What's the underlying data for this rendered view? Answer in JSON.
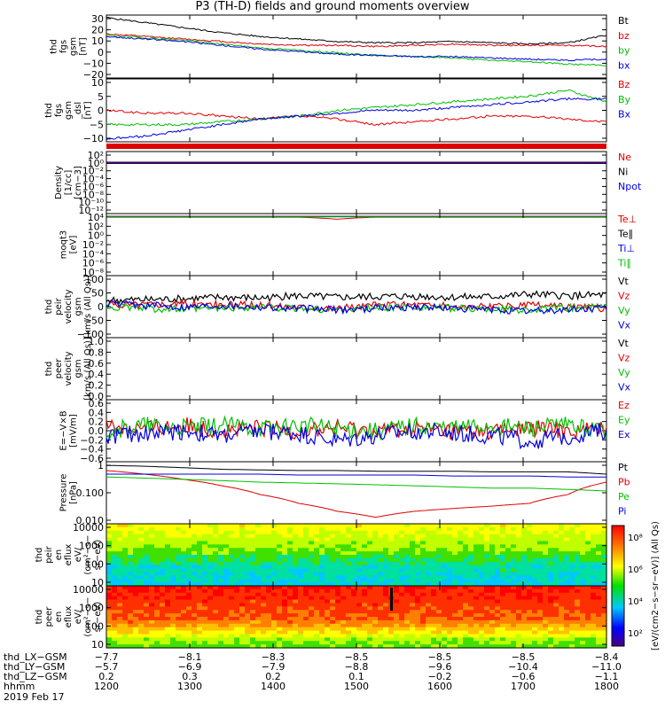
{
  "title": "P3 (TH-D) fields and ground moments overview",
  "panels": [
    {
      "id": "p1",
      "label": [
        "thd",
        "fgs",
        "gsm",
        "[nT]"
      ],
      "ticks": [
        "30",
        "20",
        "10",
        "0",
        "−10",
        "−20"
      ],
      "legend": [
        {
          "t": "Bt",
          "c": "#000000"
        },
        {
          "t": "bz",
          "c": "#e00000"
        },
        {
          "t": "by",
          "c": "#00c000"
        },
        {
          "t": "bx",
          "c": "#0000e0"
        }
      ]
    },
    {
      "id": "p2",
      "label": [
        "thd",
        "fgs",
        "gsm",
        "_dsl",
        "[nT]"
      ],
      "ticks": [
        "10",
        "5",
        "0",
        "−5",
        "−10"
      ],
      "legend": [
        {
          "t": "Bz",
          "c": "#e00000"
        },
        {
          "t": "By",
          "c": "#00c000"
        },
        {
          "t": "Bx",
          "c": "#0000e0"
        }
      ]
    },
    {
      "id": "p3",
      "label": [
        "Density",
        "[1/cc]",
        "[cm−3]"
      ],
      "ticks": [
        "10²",
        "10⁰",
        "10⁻²",
        "10⁻⁴",
        "10⁻⁶",
        "10⁻⁸",
        "10⁻¹⁰",
        "10⁻¹²"
      ],
      "legend": [
        {
          "t": "Ne",
          "c": "#e00000"
        },
        {
          "t": "Ni",
          "c": "#000000"
        },
        {
          "t": "Npot",
          "c": "#0000e0"
        }
      ]
    },
    {
      "id": "p4",
      "label": [
        "moqt3",
        "[eV]"
      ],
      "ticks": [
        "10⁴",
        "10²",
        "10⁰",
        "10⁻²",
        "10⁻⁴",
        "10⁻⁶",
        "10⁻⁸"
      ],
      "legend": [
        {
          "t": "Te⊥",
          "c": "#e00000"
        },
        {
          "t": "Te∥",
          "c": "#000000"
        },
        {
          "t": "Ti⊥",
          "c": "#0000e0"
        },
        {
          "t": "Ti∥",
          "c": "#00c000"
        }
      ]
    },
    {
      "id": "p5",
      "label": [
        "thd",
        "peir",
        "velocity",
        "gsm",
        "[km/s (All Qs)]"
      ],
      "ticks": [
        "100",
        "50",
        "0",
        "−50",
        "−100"
      ],
      "legend": [
        {
          "t": "Vt",
          "c": "#000000"
        },
        {
          "t": "Vz",
          "c": "#e00000"
        },
        {
          "t": "Vy",
          "c": "#00c000"
        },
        {
          "t": "Vx",
          "c": "#0000e0"
        }
      ]
    },
    {
      "id": "p6",
      "label": [
        "thd",
        "peer",
        "velocity",
        "gsm",
        "[km/s (All Qs)]"
      ],
      "ticks": [
        "1.0",
        "0.8",
        "0.6",
        "0.4",
        "0.2",
        "0.0"
      ],
      "legend": [
        {
          "t": "Vt",
          "c": "#000000"
        },
        {
          "t": "Vz",
          "c": "#e00000"
        },
        {
          "t": "Vy",
          "c": "#00c000"
        },
        {
          "t": "Vx",
          "c": "#0000e0"
        }
      ]
    },
    {
      "id": "p7",
      "label": [
        "E=−V×B",
        "[mV/m]"
      ],
      "ticks": [
        "0.6",
        "0.4",
        "0.2",
        "0.0",
        "−0.2",
        "−0.4",
        "−0.6"
      ],
      "legend": [
        {
          "t": "Ez",
          "c": "#e00000"
        },
        {
          "t": "Ey",
          "c": "#00c000"
        },
        {
          "t": "Ex",
          "c": "#0000e0"
        }
      ]
    },
    {
      "id": "p8",
      "label": [
        "Pressure",
        "[nPa]"
      ],
      "ticks": [
        "1",
        "0.100",
        "0.010"
      ],
      "legend": [
        {
          "t": "Pt",
          "c": "#000000"
        },
        {
          "t": "Pb",
          "c": "#e00000"
        },
        {
          "t": "Pe",
          "c": "#00c000"
        },
        {
          "t": "Pi",
          "c": "#0000e0"
        }
      ]
    },
    {
      "id": "p9",
      "label": [
        "thd",
        "peir",
        "en",
        "eflux",
        "eV/",
        "(cm²−s−",
        "sr−eV)"
      ],
      "ticks": [
        "10000",
        "1000",
        "100",
        "10"
      ],
      "legend": []
    },
    {
      "id": "p10",
      "label": [
        "thd",
        "peer",
        "en",
        "eflux",
        "eV/",
        "(cm²−s−",
        "sr−eV)"
      ],
      "ticks": [
        "10000",
        "1000",
        "100",
        "10"
      ],
      "legend": []
    }
  ],
  "colorbar": {
    "ticks": [
      "10⁸",
      "10⁶",
      "10⁴",
      "10²"
    ],
    "label": "[eV/(cm2−s−sr−eV)] (All Qs)"
  },
  "footer": {
    "rows": [
      {
        "name": "thd_LX−GSM",
        "vals": [
          "−7.7",
          "−8.1",
          "−8.3",
          "−8.5",
          "−8.5",
          "−8.5",
          "−8.4"
        ]
      },
      {
        "name": "thd_LY−GSM",
        "vals": [
          "−5.7",
          "−6.9",
          "−7.9",
          "−8.8",
          "−9.6",
          "−10.4",
          "−11.0"
        ]
      },
      {
        "name": "thd_LZ−GSM",
        "vals": [
          "0.2",
          "0.3",
          "0.2",
          "0.1",
          "−0.2",
          "−0.6",
          "−1.1"
        ]
      },
      {
        "name": "hhmm",
        "vals": [
          "1200",
          "1300",
          "1400",
          "1500",
          "1600",
          "1700",
          "1800"
        ]
      }
    ],
    "date": "2019 Feb 17"
  },
  "chart_data": {
    "type": "line",
    "title": "P3 (TH-D) fields and ground moments overview",
    "x_label": "hhmm",
    "x_ticks": [
      "1200",
      "1300",
      "1400",
      "1500",
      "1600",
      "1700",
      "1800"
    ],
    "x_range": [
      "1200",
      "1800"
    ],
    "panels": [
      {
        "name": "thd fgs gsm [nT]",
        "ylim": [
          -20,
          30
        ],
        "series": [
          {
            "name": "Bt",
            "color": "#000000",
            "values": [
              28,
              24,
              20,
              16,
              13,
              11,
              9,
              8,
              8,
              9,
              8,
              7,
              8,
              14
            ]
          },
          {
            "name": "bz",
            "color": "#e00000",
            "values": [
              15,
              13,
              11,
              9,
              7,
              6,
              6,
              5,
              6,
              7,
              6,
              6,
              6,
              5
            ]
          },
          {
            "name": "by",
            "color": "#00c000",
            "values": [
              14,
              12,
              10,
              7,
              4,
              2,
              0,
              -2,
              -3,
              -4,
              -6,
              -7,
              -9,
              -10
            ]
          },
          {
            "name": "bx",
            "color": "#0000e0",
            "values": [
              13,
              11,
              9,
              6,
              3,
              1,
              -1,
              -2,
              -3,
              -3,
              -4,
              -5,
              -6,
              -5
            ]
          }
        ]
      },
      {
        "name": "thd fgs gsm_dsl [nT]",
        "ylim": [
          -12,
          10
        ],
        "series": [
          {
            "name": "Bz",
            "color": "#e00000",
            "values": [
              -1,
              -2,
              -2,
              -3,
              -4,
              -3,
              -4,
              -6,
              -5,
              -4,
              -3,
              -3,
              -4,
              -5
            ]
          },
          {
            "name": "By",
            "color": "#00c000",
            "values": [
              -6,
              -6,
              -6,
              -5,
              -4,
              -3,
              -1,
              0,
              1,
              2,
              3,
              4,
              6,
              2
            ]
          },
          {
            "name": "Bx",
            "color": "#0000e0",
            "values": [
              -11,
              -10,
              -8,
              -6,
              -4,
              -3,
              -2,
              -1,
              -1,
              0,
              1,
              2,
              3,
              3
            ]
          }
        ]
      },
      {
        "name": "Density [1/cc]",
        "scale": "log",
        "ylim": [
          1e-12,
          100
        ],
        "series": [
          {
            "name": "Ne",
            "color": "#e00000",
            "values": [
              0.3,
              0.3,
              0.3,
              0.3,
              0.3,
              0.3,
              0.3,
              0.3,
              0.3,
              0.3,
              0.3,
              0.3,
              0.3,
              0.3
            ]
          },
          {
            "name": "Ni",
            "color": "#000000",
            "values": [
              0.4,
              0.4,
              0.4,
              0.4,
              0.4,
              0.4,
              0.4,
              0.4,
              0.4,
              0.4,
              0.4,
              0.4,
              0.4,
              0.4
            ]
          },
          {
            "name": "Npot",
            "color": "#0000e0",
            "values": [
              0.2,
              0.2,
              0.2,
              0.2,
              0.2,
              0.2,
              0.2,
              0.2,
              0.2,
              0.2,
              0.2,
              0.2,
              0.2,
              0.2
            ]
          }
        ]
      },
      {
        "name": "moqt3 [eV]",
        "scale": "log",
        "ylim": [
          1e-08,
          10000
        ],
        "series": [
          {
            "name": "Te⊥",
            "color": "#e00000",
            "values": [
              2000,
              2000,
              2000,
              2000,
              2000,
              2000,
              800,
              2000,
              2000,
              2000,
              2000,
              2000,
              2000,
              2000
            ]
          },
          {
            "name": "Te∥",
            "color": "#000000",
            "values": [
              3000,
              3000,
              3000,
              3000,
              3000,
              3000,
              3000,
              3000,
              3000,
              3000,
              3000,
              3000,
              3000,
              3000
            ]
          },
          {
            "name": "Ti⊥",
            "color": "#0000e0",
            "values": [
              2500,
              2500,
              2500,
              2500,
              2500,
              2500,
              2500,
              2500,
              2500,
              2500,
              2500,
              2500,
              2500,
              2500
            ]
          },
          {
            "name": "Ti∥",
            "color": "#00c000",
            "values": [
              2200,
              2200,
              2200,
              2200,
              2200,
              2200,
              2200,
              2200,
              2200,
              2200,
              2200,
              2200,
              2200,
              2200
            ]
          }
        ]
      },
      {
        "name": "thd peir velocity gsm [km/s]",
        "ylim": [
          -100,
          100
        ],
        "series": [
          {
            "name": "Vt",
            "color": "#000000",
            "values": [
              20,
              22,
              25,
              30,
              28,
              35,
              30,
              32,
              34,
              30,
              32,
              40,
              35,
              38
            ]
          },
          {
            "name": "Vz",
            "color": "#e00000",
            "values": [
              5,
              8,
              10,
              6,
              4,
              0,
              -5,
              5,
              8,
              0,
              -2,
              5,
              0,
              -5
            ]
          },
          {
            "name": "Vy",
            "color": "#00c000",
            "values": [
              0,
              -5,
              -10,
              -5,
              0,
              -8,
              -10,
              -5,
              0,
              -5,
              -8,
              -10,
              -5,
              0
            ]
          },
          {
            "name": "Vx",
            "color": "#0000e0",
            "values": [
              10,
              5,
              0,
              5,
              0,
              -5,
              -10,
              -5,
              0,
              -5,
              -10,
              -15,
              -10,
              -5
            ]
          }
        ]
      },
      {
        "name": "thd peer velocity gsm [km/s]",
        "ylim": [
          0,
          1
        ],
        "series": []
      },
      {
        "name": "E=−V×B [mV/m]",
        "ylim": [
          -0.6,
          0.6
        ],
        "series": [
          {
            "name": "Ez",
            "color": "#e00000",
            "values": [
              0.1,
              0.05,
              0.1,
              0.0,
              0.05,
              0.0,
              0.05,
              0.0,
              0.05,
              0.0,
              0.0,
              0.05,
              0.0,
              0.05
            ]
          },
          {
            "name": "Ey",
            "color": "#00c000",
            "values": [
              0.0,
              0.1,
              0.05,
              0.1,
              0.05,
              0.1,
              0.05,
              0.0,
              0.1,
              0.05,
              0.1,
              0.05,
              0.1,
              0.0
            ]
          },
          {
            "name": "Ex",
            "color": "#0000e0",
            "values": [
              -0.1,
              -0.05,
              0.0,
              -0.1,
              0.0,
              -0.05,
              -0.2,
              -0.1,
              0.0,
              -0.05,
              -0.1,
              -0.2,
              -0.1,
              0.0
            ]
          }
        ]
      },
      {
        "name": "Pressure [nPa]",
        "scale": "log",
        "ylim": [
          0.003,
          0.4
        ],
        "series": [
          {
            "name": "Pt",
            "color": "#000000",
            "values": [
              0.3,
              0.28,
              0.25,
              0.22,
              0.21,
              0.2,
              0.2,
              0.19,
              0.19,
              0.19,
              0.18,
              0.18,
              0.18,
              0.15
            ]
          },
          {
            "name": "Pb",
            "color": "#e00000",
            "values": [
              0.2,
              0.15,
              0.1,
              0.06,
              0.03,
              0.015,
              0.008,
              0.005,
              0.008,
              0.01,
              0.012,
              0.015,
              0.03,
              0.08
            ]
          },
          {
            "name": "Pe",
            "color": "#00c000",
            "values": [
              0.12,
              0.11,
              0.1,
              0.09,
              0.08,
              0.075,
              0.07,
              0.065,
              0.06,
              0.055,
              0.05,
              0.05,
              0.045,
              0.04
            ]
          },
          {
            "name": "Pi",
            "color": "#0000e0",
            "values": [
              0.15,
              0.15,
              0.15,
              0.15,
              0.15,
              0.14,
              0.14,
              0.14,
              0.14,
              0.13,
              0.13,
              0.13,
              0.12,
              0.12
            ]
          }
        ]
      },
      {
        "name": "thd peir en eflux",
        "type": "heatmap",
        "ylim": [
          6,
          30000
        ],
        "scale": "log",
        "colorbar_range": [
          100,
          100000000.0
        ]
      },
      {
        "name": "thd peer en eflux",
        "type": "heatmap",
        "ylim": [
          6,
          30000
        ],
        "scale": "log",
        "colorbar_range": [
          100,
          100000000.0
        ]
      }
    ]
  }
}
